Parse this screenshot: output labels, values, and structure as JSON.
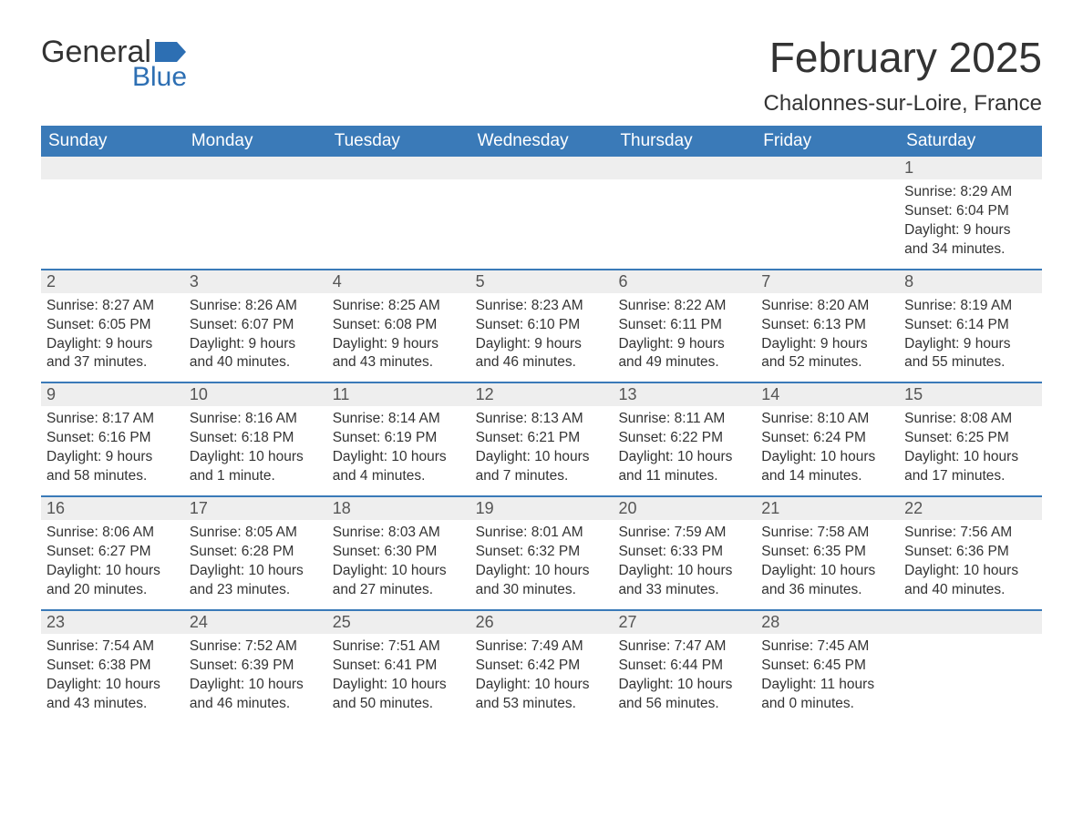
{
  "logo": {
    "text_top": "General",
    "text_bottom": "Blue",
    "flag_color": "#2d6fb3"
  },
  "header": {
    "month_title": "February 2025",
    "location": "Chalonnes-sur-Loire, France"
  },
  "colors": {
    "header_bg": "#3a7ab8",
    "header_text": "#ffffff",
    "daynum_bg": "#eeeeee",
    "week_border": "#3a7ab8",
    "body_text": "#333333",
    "logo_blue": "#2d6fb3"
  },
  "weekdays": [
    "Sunday",
    "Monday",
    "Tuesday",
    "Wednesday",
    "Thursday",
    "Friday",
    "Saturday"
  ],
  "weeks": [
    [
      null,
      null,
      null,
      null,
      null,
      null,
      {
        "n": "1",
        "sunrise": "8:29 AM",
        "sunset": "6:04 PM",
        "daylight": "9 hours and 34 minutes."
      }
    ],
    [
      {
        "n": "2",
        "sunrise": "8:27 AM",
        "sunset": "6:05 PM",
        "daylight": "9 hours and 37 minutes."
      },
      {
        "n": "3",
        "sunrise": "8:26 AM",
        "sunset": "6:07 PM",
        "daylight": "9 hours and 40 minutes."
      },
      {
        "n": "4",
        "sunrise": "8:25 AM",
        "sunset": "6:08 PM",
        "daylight": "9 hours and 43 minutes."
      },
      {
        "n": "5",
        "sunrise": "8:23 AM",
        "sunset": "6:10 PM",
        "daylight": "9 hours and 46 minutes."
      },
      {
        "n": "6",
        "sunrise": "8:22 AM",
        "sunset": "6:11 PM",
        "daylight": "9 hours and 49 minutes."
      },
      {
        "n": "7",
        "sunrise": "8:20 AM",
        "sunset": "6:13 PM",
        "daylight": "9 hours and 52 minutes."
      },
      {
        "n": "8",
        "sunrise": "8:19 AM",
        "sunset": "6:14 PM",
        "daylight": "9 hours and 55 minutes."
      }
    ],
    [
      {
        "n": "9",
        "sunrise": "8:17 AM",
        "sunset": "6:16 PM",
        "daylight": "9 hours and 58 minutes."
      },
      {
        "n": "10",
        "sunrise": "8:16 AM",
        "sunset": "6:18 PM",
        "daylight": "10 hours and 1 minute."
      },
      {
        "n": "11",
        "sunrise": "8:14 AM",
        "sunset": "6:19 PM",
        "daylight": "10 hours and 4 minutes."
      },
      {
        "n": "12",
        "sunrise": "8:13 AM",
        "sunset": "6:21 PM",
        "daylight": "10 hours and 7 minutes."
      },
      {
        "n": "13",
        "sunrise": "8:11 AM",
        "sunset": "6:22 PM",
        "daylight": "10 hours and 11 minutes."
      },
      {
        "n": "14",
        "sunrise": "8:10 AM",
        "sunset": "6:24 PM",
        "daylight": "10 hours and 14 minutes."
      },
      {
        "n": "15",
        "sunrise": "8:08 AM",
        "sunset": "6:25 PM",
        "daylight": "10 hours and 17 minutes."
      }
    ],
    [
      {
        "n": "16",
        "sunrise": "8:06 AM",
        "sunset": "6:27 PM",
        "daylight": "10 hours and 20 minutes."
      },
      {
        "n": "17",
        "sunrise": "8:05 AM",
        "sunset": "6:28 PM",
        "daylight": "10 hours and 23 minutes."
      },
      {
        "n": "18",
        "sunrise": "8:03 AM",
        "sunset": "6:30 PM",
        "daylight": "10 hours and 27 minutes."
      },
      {
        "n": "19",
        "sunrise": "8:01 AM",
        "sunset": "6:32 PM",
        "daylight": "10 hours and 30 minutes."
      },
      {
        "n": "20",
        "sunrise": "7:59 AM",
        "sunset": "6:33 PM",
        "daylight": "10 hours and 33 minutes."
      },
      {
        "n": "21",
        "sunrise": "7:58 AM",
        "sunset": "6:35 PM",
        "daylight": "10 hours and 36 minutes."
      },
      {
        "n": "22",
        "sunrise": "7:56 AM",
        "sunset": "6:36 PM",
        "daylight": "10 hours and 40 minutes."
      }
    ],
    [
      {
        "n": "23",
        "sunrise": "7:54 AM",
        "sunset": "6:38 PM",
        "daylight": "10 hours and 43 minutes."
      },
      {
        "n": "24",
        "sunrise": "7:52 AM",
        "sunset": "6:39 PM",
        "daylight": "10 hours and 46 minutes."
      },
      {
        "n": "25",
        "sunrise": "7:51 AM",
        "sunset": "6:41 PM",
        "daylight": "10 hours and 50 minutes."
      },
      {
        "n": "26",
        "sunrise": "7:49 AM",
        "sunset": "6:42 PM",
        "daylight": "10 hours and 53 minutes."
      },
      {
        "n": "27",
        "sunrise": "7:47 AM",
        "sunset": "6:44 PM",
        "daylight": "10 hours and 56 minutes."
      },
      {
        "n": "28",
        "sunrise": "7:45 AM",
        "sunset": "6:45 PM",
        "daylight": "11 hours and 0 minutes."
      },
      null
    ]
  ],
  "labels": {
    "sunrise": "Sunrise:",
    "sunset": "Sunset:",
    "daylight": "Daylight:"
  }
}
